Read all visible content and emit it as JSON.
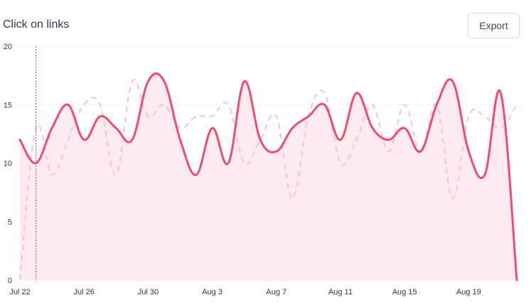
{
  "header": {
    "title": "Click on links",
    "export_label": "Export"
  },
  "colors": {
    "primary": "#ef4d6e",
    "secondary": "#f7c3cf",
    "fill": "#fde8ed",
    "grid": "#f1f1f4",
    "marker": "#e2385a"
  },
  "chart_data": {
    "type": "area",
    "title": "Click on links",
    "xlabel": "",
    "ylabel": "",
    "ylim": [
      0,
      20
    ],
    "yticks": [
      "0",
      "5",
      "10",
      "15",
      "20"
    ],
    "xticks": [
      "Jul 22",
      "Jul 26",
      "Jul 30",
      "Aug 3",
      "Aug 7",
      "Aug 11",
      "Aug 15",
      "Aug 19"
    ],
    "x": [
      "Jul 22",
      "Jul 23",
      "Jul 24",
      "Jul 25",
      "Jul 26",
      "Jul 27",
      "Jul 28",
      "Jul 29",
      "Jul 30",
      "Jul 31",
      "Aug 1",
      "Aug 2",
      "Aug 3",
      "Aug 4",
      "Aug 5",
      "Aug 6",
      "Aug 7",
      "Aug 8",
      "Aug 9",
      "Aug 10",
      "Aug 11",
      "Aug 12",
      "Aug 13",
      "Aug 14",
      "Aug 15",
      "Aug 16",
      "Aug 17",
      "Aug 18",
      "Aug 19",
      "Aug 20",
      "Aug 21",
      "Aug 22"
    ],
    "highlight_x": "Jul 23",
    "grid": true,
    "series": [
      {
        "style": "solid",
        "values": [
          12,
          10,
          13,
          15,
          12,
          14,
          13,
          12,
          17,
          17,
          12,
          9,
          13,
          10,
          17,
          12,
          11,
          13,
          14,
          15,
          12,
          16,
          13,
          12,
          13,
          11,
          15,
          17,
          11,
          9,
          16,
          0
        ]
      },
      {
        "style": "dashed",
        "values": [
          0,
          13,
          9,
          12,
          15,
          15,
          9,
          17,
          14,
          15,
          13,
          14,
          14,
          15,
          10,
          12,
          14,
          7,
          14,
          16,
          10,
          12,
          15,
          11,
          15,
          11,
          15,
          7,
          14,
          14,
          13,
          15
        ]
      }
    ]
  }
}
